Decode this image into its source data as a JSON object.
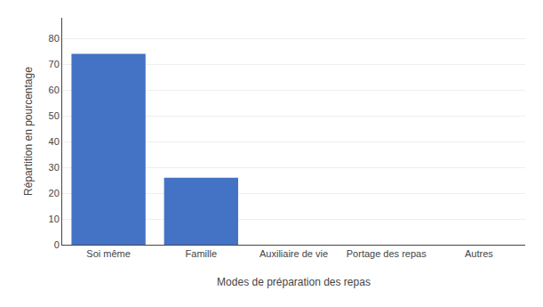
{
  "chart_data": {
    "type": "bar",
    "xlabel": "Modes de préparation des repas",
    "ylabel": "Répartition en pourcentage",
    "categories": [
      "Soi même",
      "Famille",
      "Auxiliaire de vie",
      "Portage des repas",
      "Autres"
    ],
    "values": [
      74.0,
      26.0,
      0,
      0,
      0
    ],
    "color": "#4472C4",
    "ylim": [
      0,
      88
    ],
    "yticks": [
      0,
      10,
      20,
      30,
      40,
      50,
      60,
      70,
      80
    ],
    "grid": true
  }
}
